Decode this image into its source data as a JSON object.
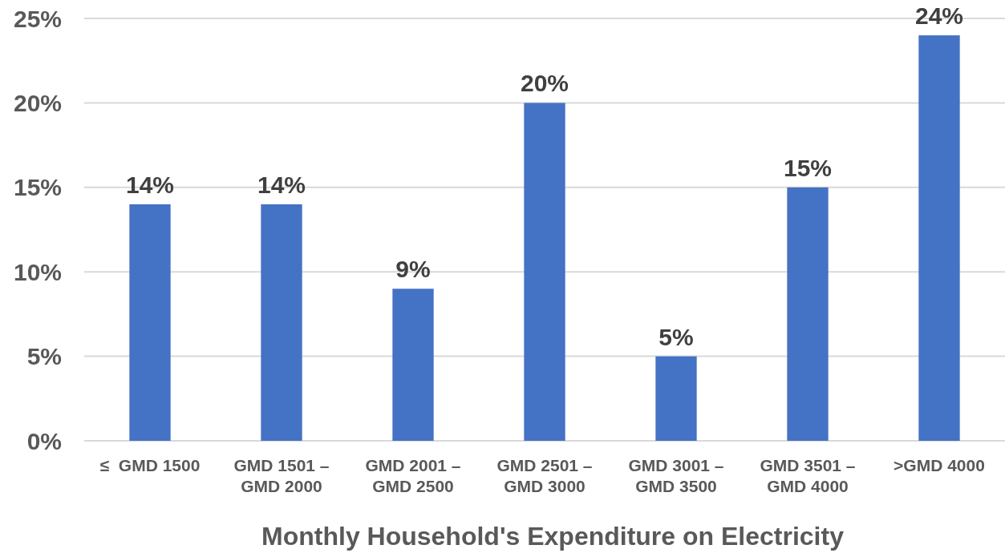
{
  "chart_data": {
    "type": "bar",
    "xlabel": "Monthly Household's Expenditure on Electricity",
    "categories": [
      "≤  GMD 1500",
      "GMD 1501 – GMD 2000",
      "GMD 2001 – GMD 2500",
      "GMD 2501 – GMD 3000",
      "GMD 3001 – GMD 3500",
      "GMD 3501 – GMD 4000",
      ">GMD 4000"
    ],
    "values": [
      14,
      14,
      9,
      20,
      5,
      15,
      24
    ],
    "value_labels": [
      "14%",
      "14%",
      "9%",
      "20%",
      "5%",
      "15%",
      "24%"
    ],
    "color": "#4472c4",
    "ylim": [
      0,
      25
    ],
    "yticks": [
      {
        "value": 0,
        "label": "0%"
      },
      {
        "value": 5,
        "label": "5%"
      },
      {
        "value": 10,
        "label": "10%"
      },
      {
        "value": 15,
        "label": "15%"
      },
      {
        "value": 20,
        "label": "20%"
      },
      {
        "value": 25,
        "label": "25%"
      }
    ],
    "grid": "y"
  }
}
